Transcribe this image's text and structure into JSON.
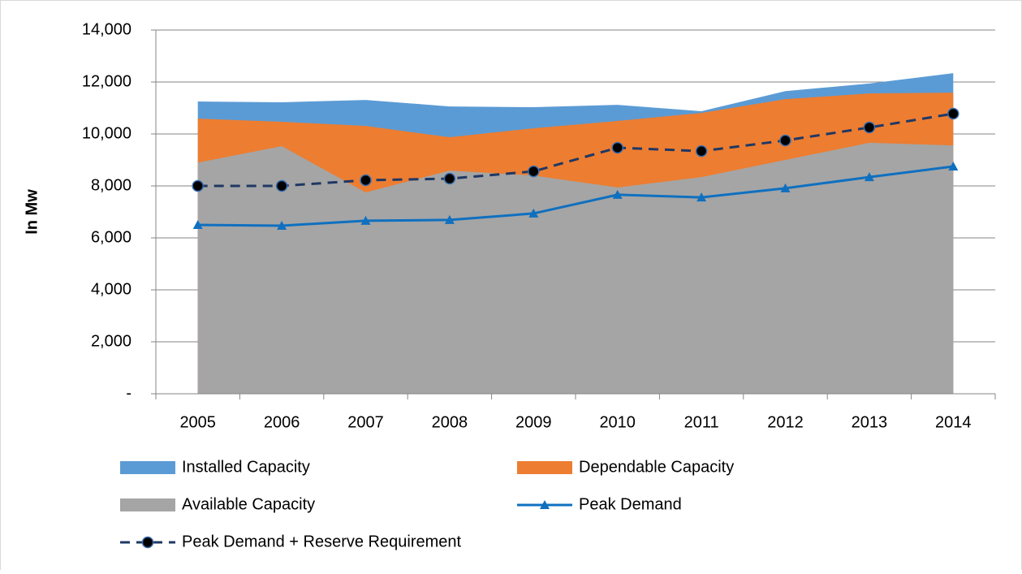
{
  "chart_data": {
    "type": "area-line",
    "y_label": "In Mw",
    "categories": [
      "2005",
      "2006",
      "2007",
      "2008",
      "2009",
      "2010",
      "2011",
      "2012",
      "2013",
      "2014"
    ],
    "series": [
      {
        "name": "Installed Capacity",
        "kind": "area",
        "color": "#5b9bd5",
        "values": [
          11250,
          11220,
          11310,
          11060,
          11030,
          11120,
          10875,
          11650,
          11940,
          12340
        ]
      },
      {
        "name": "Dependable Capacity",
        "kind": "area",
        "color": "#ed7d31",
        "values": [
          10590,
          10470,
          10310,
          9875,
          10220,
          10500,
          10810,
          11340,
          11560,
          11590
        ]
      },
      {
        "name": "Available Capacity",
        "kind": "area",
        "color": "#a5a5a5",
        "values": [
          8900,
          9530,
          7750,
          8590,
          8400,
          7940,
          8340,
          9000,
          9660,
          9560
        ]
      },
      {
        "name": "Peak Demand",
        "kind": "line",
        "marker": "triangle",
        "dashed": false,
        "color": "#0f70c0",
        "values": [
          6500,
          6470,
          6660,
          6690,
          6940,
          7660,
          7560,
          7910,
          8340,
          8750
        ]
      },
      {
        "name": "Peak Demand + Reserve Requirement",
        "kind": "line",
        "marker": "circle",
        "dashed": true,
        "color": "#1f3864",
        "values": [
          8000,
          8000,
          8220,
          8280,
          8560,
          9470,
          9340,
          9750,
          10250,
          10780
        ]
      }
    ],
    "ylim": [
      0,
      14000
    ],
    "yticks": [
      {
        "value": 0,
        "label": "-"
      },
      {
        "value": 2000,
        "label": "2,000"
      },
      {
        "value": 4000,
        "label": "4,000"
      },
      {
        "value": 6000,
        "label": "6,000"
      },
      {
        "value": 8000,
        "label": "8,000"
      },
      {
        "value": 10000,
        "label": "10,000"
      },
      {
        "value": 12000,
        "label": "12,000"
      },
      {
        "value": 14000,
        "label": "14,000"
      }
    ],
    "grid": true,
    "legend": "bottom"
  }
}
